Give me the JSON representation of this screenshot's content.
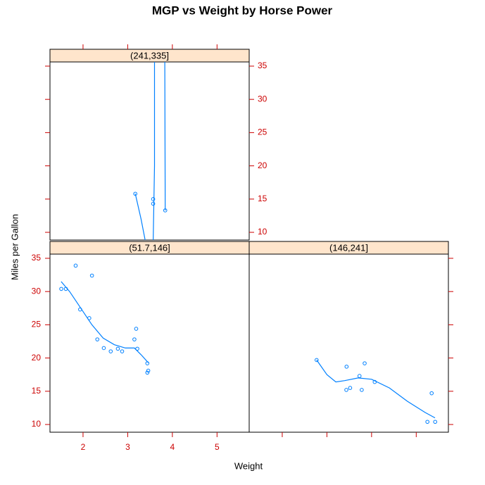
{
  "chart_data": {
    "type": "scatter",
    "title": "MGP vs Weight by Horse Power",
    "xlabel": "Weight",
    "ylabel": "Miles per Gallon",
    "xlim": [
      1.26,
      5.72
    ],
    "ylim": [
      8.84,
      35.63
    ],
    "xticks": [
      2,
      3,
      4,
      5
    ],
    "yticks": [
      10,
      15,
      20,
      25,
      30,
      35
    ],
    "color": "#0080ff",
    "strip_color": "#ffe5cc",
    "panels": [
      {
        "strip": "(51.7,146]",
        "x": [
          2.62,
          2.875,
          2.32,
          3.215,
          3.46,
          3.19,
          3.15,
          3.44,
          3.44,
          2.2,
          1.615,
          1.835,
          2.465,
          1.935,
          2.14,
          1.513,
          2.78
        ],
        "y": [
          21,
          21,
          22.8,
          21.4,
          18.1,
          24.4,
          22.8,
          19.2,
          17.8,
          32.4,
          30.4,
          33.9,
          21.5,
          27.3,
          26,
          30.4,
          21.4
        ],
        "smooth_x": [
          1.51,
          1.7,
          1.95,
          2.2,
          2.45,
          2.7,
          2.95,
          3.15,
          3.3,
          3.46
        ],
        "smooth_y": [
          31.5,
          30,
          27.5,
          25,
          23,
          22,
          21.5,
          21.5,
          20.5,
          19.3
        ]
      },
      {
        "strip": "(146,241]",
        "x": [
          3.44,
          4.07,
          3.73,
          3.78,
          5.25,
          5.424,
          5.345,
          3.52,
          3.435,
          3.845,
          2.77
        ],
        "y": [
          18.7,
          16.4,
          17.3,
          15.2,
          10.4,
          10.4,
          14.7,
          15.5,
          15.2,
          19.2,
          19.7
        ],
        "smooth_x": [
          2.77,
          3.0,
          3.2,
          3.4,
          3.7,
          4.0,
          4.4,
          4.8,
          5.2,
          5.42
        ],
        "smooth_y": [
          19.7,
          17.5,
          16.4,
          16.6,
          17.0,
          16.8,
          15.5,
          13.5,
          11.8,
          11.0
        ]
      },
      {
        "strip": "(241,335]",
        "x": [
          3.57,
          3.84,
          3.17,
          3.57
        ],
        "y": [
          14.3,
          13.3,
          15.8,
          15.0
        ],
        "smooth_x": [
          3.17,
          3.3,
          3.4,
          3.5,
          3.57,
          3.6,
          3.6,
          3.7,
          3.83,
          3.84
        ],
        "smooth_y": [
          15.8,
          12,
          8.5,
          null,
          8.5,
          20,
          36,
          null,
          36,
          13.3
        ]
      }
    ]
  }
}
